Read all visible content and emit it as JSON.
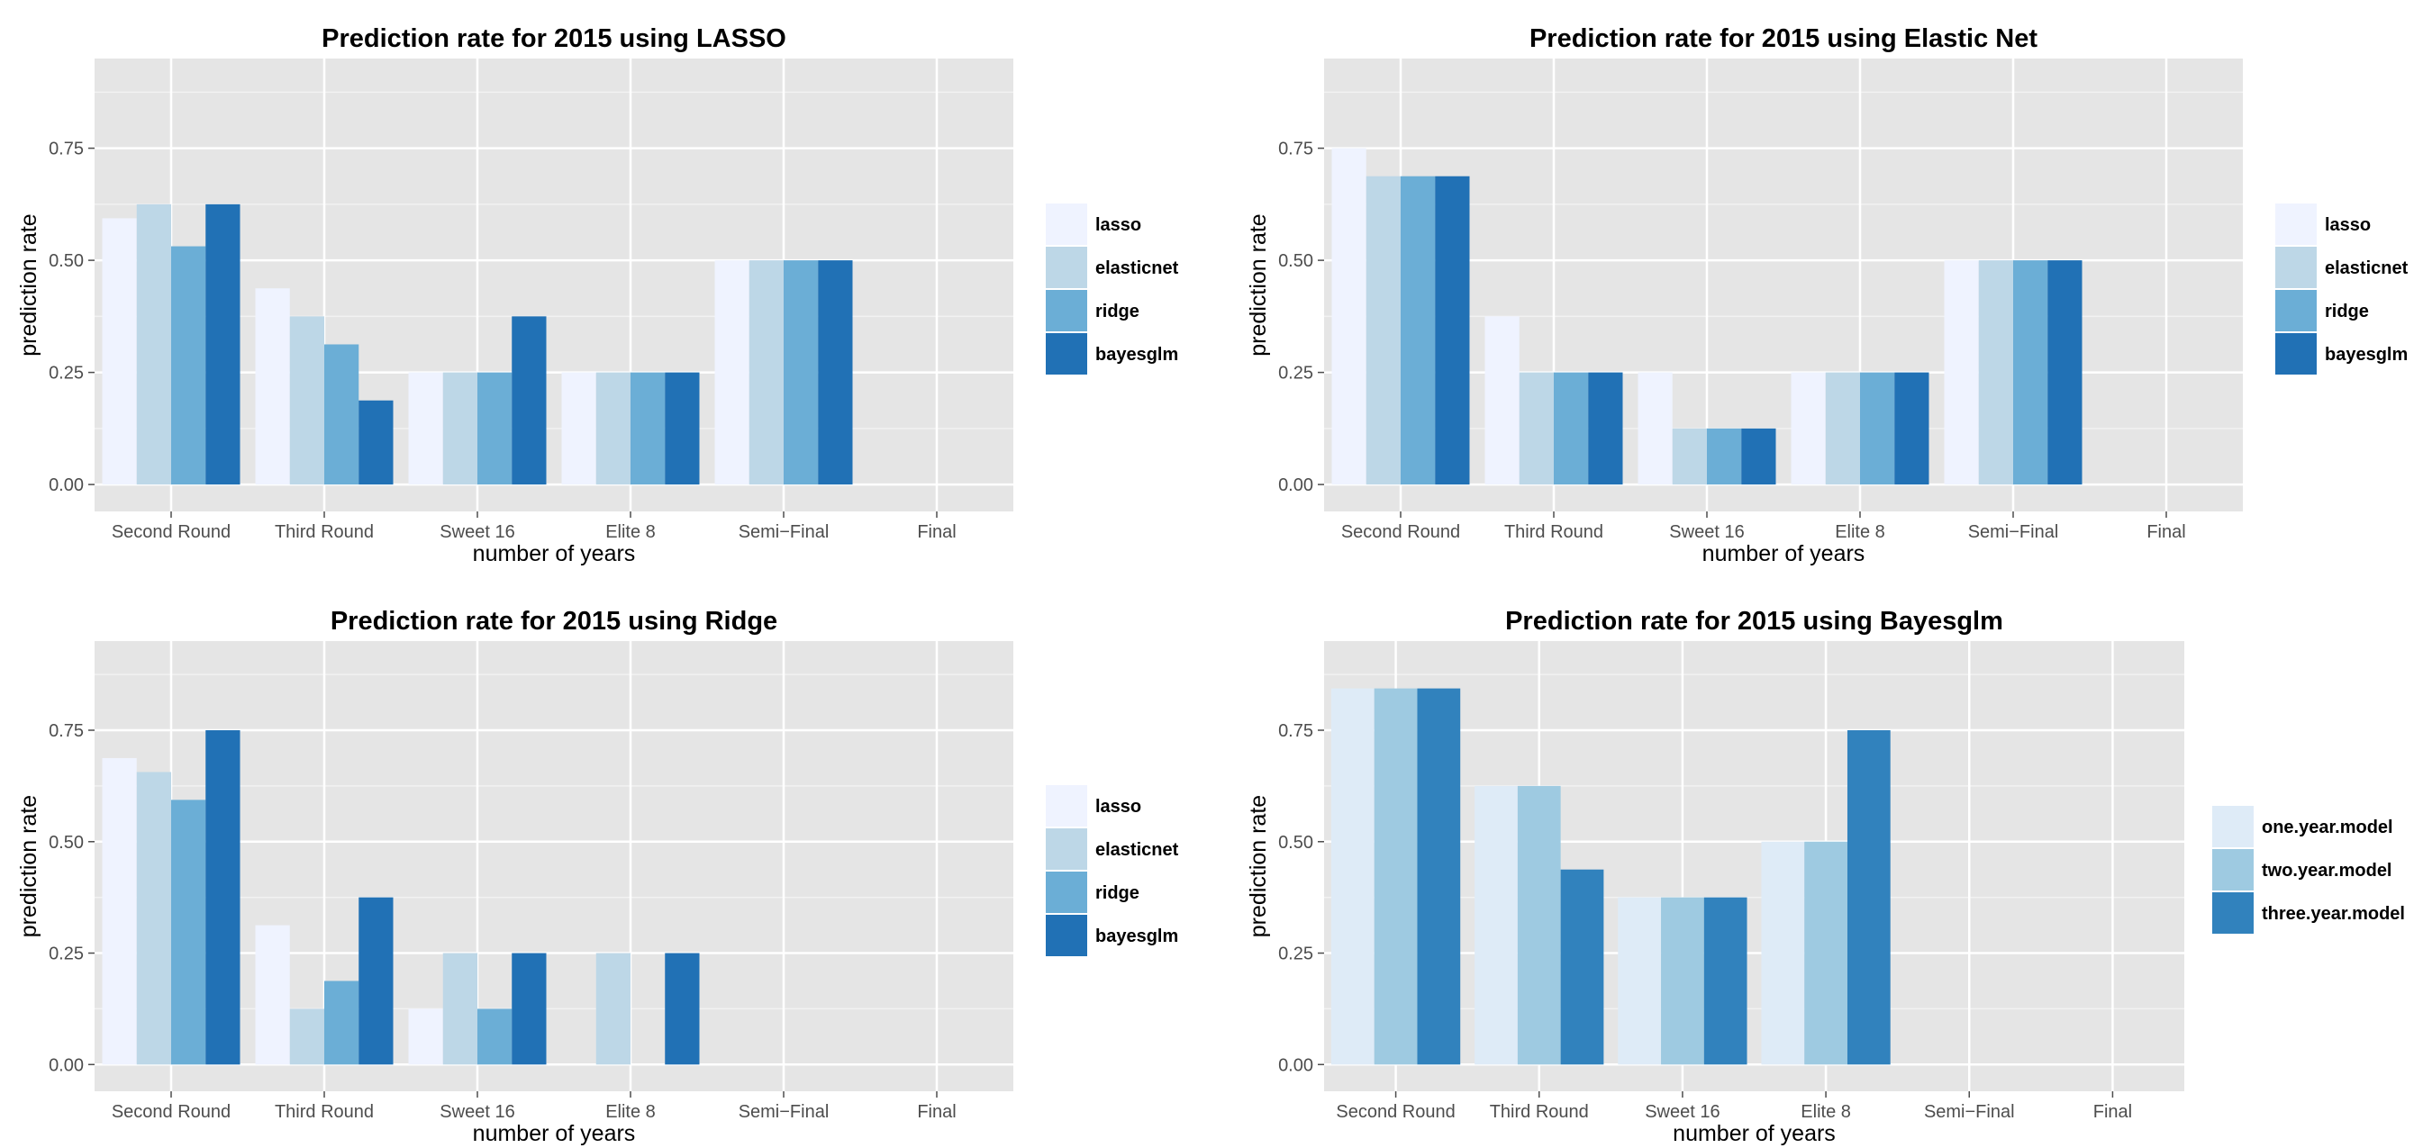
{
  "palette": {
    "four": [
      "#eff3ff",
      "#bdd7e7",
      "#6baed6",
      "#2171b5"
    ],
    "three": [
      "#deebf7",
      "#9ecae1",
      "#3182bd"
    ],
    "panel_bg": "#e5e5e5",
    "grid": "#ffffff",
    "grid_minor": "#f2f2f2"
  },
  "chart_data": [
    {
      "type": "bar",
      "title": "Prediction rate for 2015 using LASSO",
      "xlabel": "number of years",
      "ylabel": "prediction rate",
      "categories": [
        "Second Round",
        "Third Round",
        "Sweet 16",
        "Elite 8",
        "Semi−Final",
        "Final"
      ],
      "ylim": [
        -0.06,
        0.95
      ],
      "yticks": [
        "0.00",
        "0.25",
        "0.50",
        "0.75"
      ],
      "grid": true,
      "legend_position": "right",
      "series": [
        {
          "name": "lasso",
          "values": [
            0.59375,
            0.4375,
            0.25,
            0.25,
            0.5,
            0
          ]
        },
        {
          "name": "elasticnet",
          "values": [
            0.625,
            0.375,
            0.25,
            0.25,
            0.5,
            0
          ]
        },
        {
          "name": "ridge",
          "values": [
            0.53125,
            0.3125,
            0.25,
            0.25,
            0.5,
            0
          ]
        },
        {
          "name": "bayesglm",
          "values": [
            0.625,
            0.1875,
            0.375,
            0.25,
            0.5,
            0
          ]
        }
      ]
    },
    {
      "type": "bar",
      "title": "Prediction rate for 2015 using Elastic Net",
      "xlabel": "number of years",
      "ylabel": "prediction rate",
      "categories": [
        "Second Round",
        "Third Round",
        "Sweet 16",
        "Elite 8",
        "Semi−Final",
        "Final"
      ],
      "ylim": [
        -0.06,
        0.95
      ],
      "yticks": [
        "0.00",
        "0.25",
        "0.50",
        "0.75"
      ],
      "grid": true,
      "legend_position": "right",
      "series": [
        {
          "name": "lasso",
          "values": [
            0.75,
            0.375,
            0.25,
            0.25,
            0.5,
            0
          ]
        },
        {
          "name": "elasticnet",
          "values": [
            0.6875,
            0.25,
            0.125,
            0.25,
            0.5,
            0
          ]
        },
        {
          "name": "ridge",
          "values": [
            0.6875,
            0.25,
            0.125,
            0.25,
            0.5,
            0
          ]
        },
        {
          "name": "bayesglm",
          "values": [
            0.6875,
            0.25,
            0.125,
            0.25,
            0.5,
            0
          ]
        }
      ]
    },
    {
      "type": "bar",
      "title": "Prediction rate for 2015 using Ridge",
      "xlabel": "number of years",
      "ylabel": "prediction rate",
      "categories": [
        "Second Round",
        "Third Round",
        "Sweet 16",
        "Elite 8",
        "Semi−Final",
        "Final"
      ],
      "ylim": [
        -0.06,
        0.95
      ],
      "yticks": [
        "0.00",
        "0.25",
        "0.50",
        "0.75"
      ],
      "grid": true,
      "legend_position": "right",
      "series": [
        {
          "name": "lasso",
          "values": [
            0.6875,
            0.3125,
            0.125,
            0,
            0,
            0
          ]
        },
        {
          "name": "elasticnet",
          "values": [
            0.65625,
            0.125,
            0.25,
            0.25,
            0,
            0
          ]
        },
        {
          "name": "ridge",
          "values": [
            0.59375,
            0.1875,
            0.125,
            0,
            0,
            0
          ]
        },
        {
          "name": "bayesglm",
          "values": [
            0.75,
            0.375,
            0.25,
            0.25,
            0,
            0
          ]
        }
      ]
    },
    {
      "type": "bar",
      "title": "Prediction rate for 2015 using Bayesglm",
      "xlabel": "number of years",
      "ylabel": "prediction rate",
      "categories": [
        "Second Round",
        "Third Round",
        "Sweet 16",
        "Elite 8",
        "Semi−Final",
        "Final"
      ],
      "ylim": [
        -0.06,
        0.95
      ],
      "yticks": [
        "0.00",
        "0.25",
        "0.50",
        "0.75"
      ],
      "grid": true,
      "legend_position": "right",
      "series": [
        {
          "name": "one.year.model",
          "values": [
            0.84375,
            0.625,
            0.375,
            0.5,
            0,
            0
          ]
        },
        {
          "name": "two.year.model",
          "values": [
            0.84375,
            0.625,
            0.375,
            0.5,
            0,
            0
          ]
        },
        {
          "name": "three.year.model",
          "values": [
            0.84375,
            0.4375,
            0.375,
            0.75,
            0,
            0
          ]
        }
      ]
    }
  ]
}
